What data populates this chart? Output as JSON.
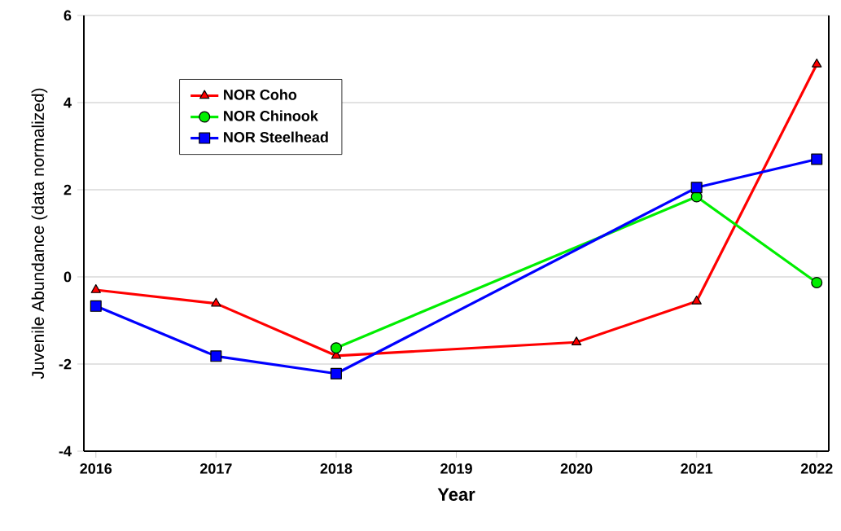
{
  "chart_data": {
    "type": "line",
    "xlabel": "Year",
    "ylabel": "Juvenile Abundance (data normalized)",
    "xlim": [
      2015.9,
      2022.1
    ],
    "xticks": [
      2016,
      2017,
      2018,
      2019,
      2020,
      2021,
      2022
    ],
    "ylim": [
      -4,
      6
    ],
    "yticks": [
      -4,
      -2,
      0,
      2,
      4,
      6
    ],
    "grid": "y",
    "legend": "top left",
    "line_style": "solid",
    "series": [
      {
        "name": "NOR Coho",
        "color": "#ff0000",
        "marker": "triangle",
        "x": [
          2016,
          2017,
          2018,
          2020,
          2021,
          2022
        ],
        "values": [
          -0.3,
          -0.61,
          -1.81,
          -1.5,
          -0.56,
          4.88
        ]
      },
      {
        "name": "NOR Chinook",
        "color": "#00ee00",
        "marker": "circle",
        "x": [
          2018,
          2021,
          2022
        ],
        "values": [
          -1.63,
          1.84,
          -0.13
        ]
      },
      {
        "name": "NOR Steelhead",
        "color": "#0000ff",
        "marker": "square",
        "x": [
          2016,
          2017,
          2018,
          2021,
          2022
        ],
        "values": [
          -0.67,
          -1.82,
          -2.22,
          2.05,
          2.7
        ]
      }
    ]
  }
}
